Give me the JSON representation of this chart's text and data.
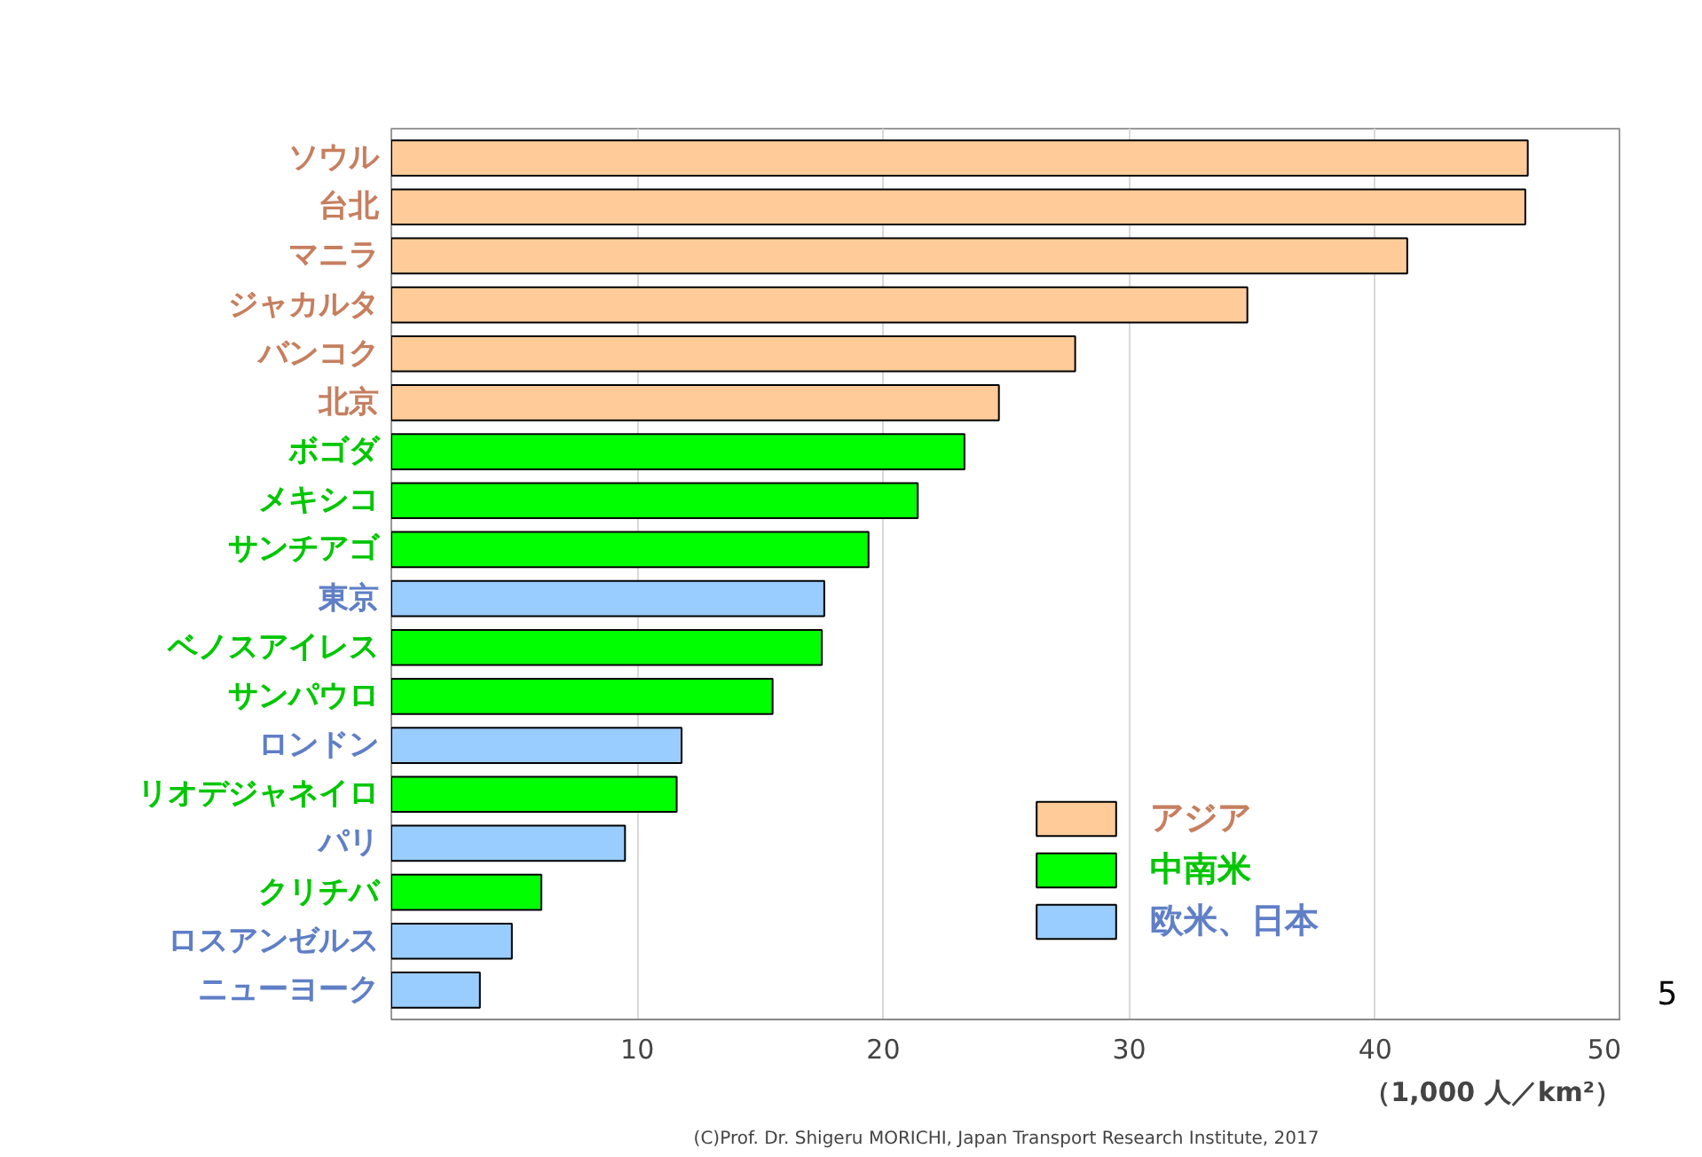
{
  "chart_data": {
    "type": "bar",
    "orientation": "horizontal",
    "stacked": true,
    "categories": [
      "ソウル",
      "台北",
      "マニラ",
      "ジャカルタ",
      "バンコク",
      "北京",
      "ボゴダ",
      "メキシコ",
      "サンチアゴ",
      "東京",
      "ベノスアイレス",
      "サンパウロ",
      "ロンドン",
      "リオデジャネイロ",
      "パリ",
      "クリチバ",
      "ロスアンゼルス",
      "ニューヨーク"
    ],
    "series": [
      {
        "name": "アジア",
        "color": "#ffcc99",
        "values": [
          46.2,
          46.1,
          41.3,
          34.8,
          27.8,
          24.7,
          null,
          null,
          null,
          null,
          null,
          null,
          null,
          null,
          null,
          null,
          null,
          null
        ]
      },
      {
        "name": "中南米",
        "color": "#00ff00",
        "values": [
          null,
          null,
          null,
          null,
          null,
          null,
          23.3,
          21.4,
          19.4,
          null,
          17.5,
          15.5,
          null,
          11.6,
          null,
          6.1,
          null,
          null
        ]
      },
      {
        "name": "欧米、日本",
        "color": "#99ccff",
        "values": [
          null,
          null,
          null,
          null,
          null,
          null,
          null,
          null,
          null,
          17.6,
          null,
          null,
          11.8,
          null,
          9.5,
          null,
          4.9,
          3.6
        ]
      }
    ],
    "xlim": [
      0,
      50
    ],
    "xticks": [
      10,
      20,
      30,
      40,
      50
    ],
    "xlabel": "（1,000 人／km²）",
    "grid": "x",
    "legend": "bottom right",
    "annotations": [
      "(C)Prof. Dr. Shigeru MORICHI, Japan Transport Research Institute, 2017",
      "5"
    ]
  }
}
